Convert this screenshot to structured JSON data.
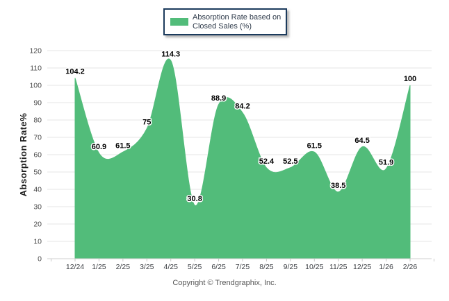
{
  "chart_data": {
    "type": "area",
    "title": "",
    "series_name": "Absorption Rate based on Closed Sales (%)",
    "categories": [
      "12/24",
      "1/25",
      "2/25",
      "3/25",
      "4/25",
      "5/25",
      "6/25",
      "7/25",
      "8/25",
      "9/25",
      "10/25",
      "11/25",
      "12/25",
      "1/26",
      "2/26"
    ],
    "values": [
      104.2,
      60.9,
      61.5,
      75,
      114.3,
      30.8,
      88.9,
      84.2,
      52.4,
      52.5,
      61.5,
      38.5,
      64.5,
      51.9,
      100
    ],
    "xlabel": "",
    "ylabel": "Absorption Rate%",
    "ylim": [
      0,
      120
    ],
    "ytick_step": 10,
    "ytick_labels": [
      "0",
      "10",
      "20",
      "30",
      "40",
      "50",
      "60",
      "70",
      "80",
      "90",
      "100",
      "110",
      "120"
    ],
    "grid": "horizontal",
    "legend_position": "top-center",
    "data_labels_shown": true
  },
  "legend": {
    "lines": [
      "Absorption Rate based on",
      "Closed Sales (%)"
    ]
  },
  "footer": {
    "text": "Copyright © Trendgraphix, Inc."
  },
  "colors": {
    "area_fill": "#52bc7a",
    "legend_border": "#1b3a5c",
    "gridline": "#e6e6e6",
    "axis_line": "#cfcfcf",
    "tick": "#c8c8c8",
    "x_label": "#3a3d42",
    "y_label": "#4a4a4a",
    "data_label": "#000000",
    "background": "#ffffff"
  }
}
